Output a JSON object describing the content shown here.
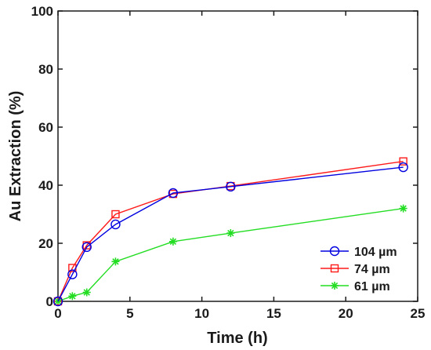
{
  "chart_data": {
    "type": "line",
    "title": "",
    "xlabel": "Time (h)",
    "ylabel": "Au Extraction (%)",
    "xlim": [
      0,
      25
    ],
    "ylim": [
      0,
      100
    ],
    "x_ticks": [
      "0",
      "5",
      "10",
      "15",
      "20",
      "25"
    ],
    "y_ticks": [
      "0",
      "20",
      "40",
      "60",
      "80",
      "100"
    ],
    "grid": false,
    "legend_position": "bottom-right",
    "series": [
      {
        "name": "104 µm",
        "color": "#0000e0",
        "marker": "circle",
        "x": [
          0,
          1,
          2,
          4,
          8,
          12,
          24
        ],
        "y": [
          0,
          9.3,
          18.7,
          26.5,
          37.3,
          39.5,
          46.2
        ]
      },
      {
        "name": "74 µm",
        "color": "#ff1a1a",
        "marker": "square",
        "x": [
          0,
          1,
          2,
          4,
          8,
          12,
          24
        ],
        "y": [
          0,
          11.5,
          19.3,
          30.0,
          37.0,
          39.7,
          48.2
        ]
      },
      {
        "name": "61 µm",
        "color": "#22dd22",
        "marker": "asterisk",
        "x": [
          0,
          1,
          2,
          4,
          8,
          12,
          24
        ],
        "y": [
          0,
          1.8,
          3.1,
          13.7,
          20.6,
          23.5,
          32.0
        ]
      }
    ]
  }
}
